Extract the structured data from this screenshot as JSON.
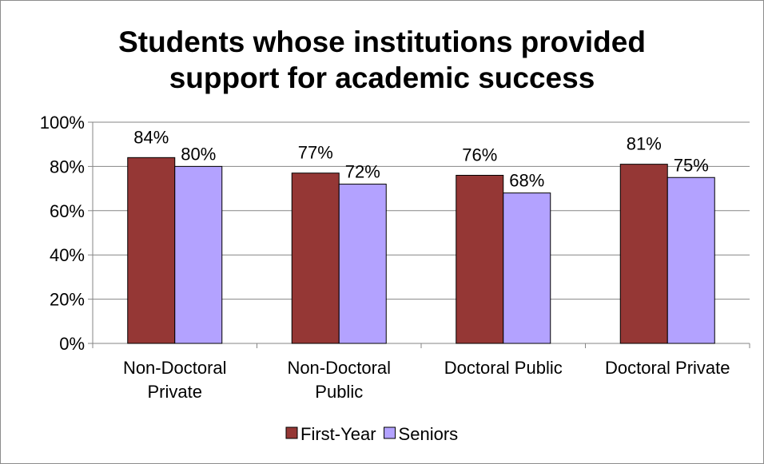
{
  "chart_data": {
    "type": "bar",
    "title_lines": [
      "Students whose institutions provided",
      "support for academic success"
    ],
    "categories": [
      [
        "Non-Doctoral",
        "Private"
      ],
      [
        "Non-Doctoral",
        "Public"
      ],
      [
        "Doctoral Public"
      ],
      [
        "Doctoral Private"
      ]
    ],
    "series": [
      {
        "name": "First-Year",
        "values": [
          84,
          77,
          76,
          81
        ],
        "labels": [
          "84%",
          "77%",
          "76%",
          "81%"
        ],
        "color": "#953735"
      },
      {
        "name": "Seniors",
        "values": [
          80,
          72,
          68,
          75
        ],
        "labels": [
          "80%",
          "72%",
          "68%",
          "75%"
        ],
        "color": "#b3a2ff"
      }
    ],
    "ylim": [
      0,
      100
    ],
    "yticks": [
      0,
      20,
      40,
      60,
      80,
      100
    ],
    "ytick_labels": [
      "0%",
      "20%",
      "40%",
      "60%",
      "80%",
      "100%"
    ],
    "grid": true,
    "legend_position": "bottom"
  }
}
